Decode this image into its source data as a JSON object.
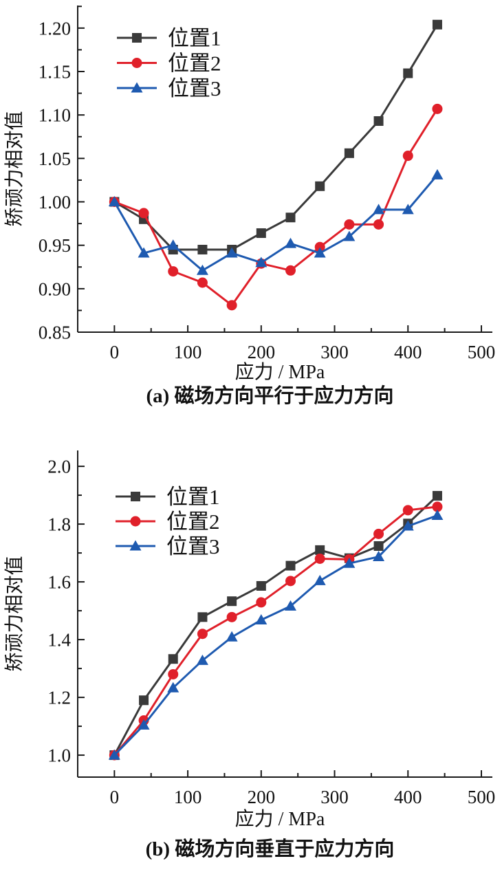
{
  "chart_data": [
    {
      "id": "a",
      "type": "line",
      "caption": "(a) 磁场方向平行于应力方向",
      "xlabel": "应力 / MPa",
      "ylabel": "矫顽力相对值",
      "x": [
        0,
        40,
        80,
        120,
        160,
        200,
        240,
        280,
        320,
        360,
        400,
        440
      ],
      "series": [
        {
          "name": "位置1",
          "marker": "square",
          "color": "#3a3a3a",
          "values": [
            1.0,
            0.98,
            0.945,
            0.945,
            0.945,
            0.964,
            0.982,
            1.018,
            1.056,
            1.093,
            1.148,
            1.204
          ]
        },
        {
          "name": "位置2",
          "marker": "circle",
          "color": "#e0202a",
          "values": [
            1.0,
            0.987,
            0.92,
            0.907,
            0.881,
            0.929,
            0.921,
            0.948,
            0.974,
            0.974,
            1.053,
            1.107
          ]
        },
        {
          "name": "位置3",
          "marker": "triangle",
          "color": "#1e5ab0",
          "values": [
            1.0,
            0.941,
            0.95,
            0.921,
            0.941,
            0.93,
            0.952,
            0.941,
            0.96,
            0.991,
            0.991,
            1.031
          ]
        }
      ],
      "xlim": [
        -50,
        515
      ],
      "ylim": [
        0.85,
        1.226
      ],
      "xticks": [
        0,
        100,
        200,
        300,
        400,
        500
      ],
      "xtick_labels": [
        "0",
        "100",
        "200",
        "300",
        "400",
        "500"
      ],
      "x_minor": [
        50,
        150,
        250,
        350,
        450
      ],
      "yticks": [
        0.85,
        0.9,
        0.95,
        1.0,
        1.05,
        1.1,
        1.15,
        1.2
      ],
      "ytick_labels": [
        "0.85",
        "0.90",
        "0.95",
        "1.00",
        "1.05",
        "1.10",
        "1.15",
        "1.20"
      ],
      "y_minor": [
        0.875,
        0.925,
        0.975,
        1.025,
        1.075,
        1.125,
        1.175,
        1.225
      ],
      "grid": false,
      "legend_position": "upper-left-inside"
    },
    {
      "id": "b",
      "type": "line",
      "caption": "(b) 磁场方向垂直于应力方向",
      "xlabel": "应力 / MPa",
      "ylabel": "矫顽力相对值",
      "x": [
        0,
        40,
        80,
        120,
        160,
        200,
        240,
        280,
        320,
        360,
        400,
        440
      ],
      "series": [
        {
          "name": "位置1",
          "marker": "square",
          "color": "#3a3a3a",
          "values": [
            1.0,
            1.19,
            1.333,
            1.478,
            1.533,
            1.586,
            1.656,
            1.71,
            1.682,
            1.724,
            1.802,
            1.898
          ]
        },
        {
          "name": "位置2",
          "marker": "circle",
          "color": "#e0202a",
          "values": [
            1.0,
            1.12,
            1.28,
            1.42,
            1.478,
            1.529,
            1.603,
            1.68,
            1.678,
            1.766,
            1.848,
            1.86
          ]
        },
        {
          "name": "位置3",
          "marker": "triangle",
          "color": "#1e5ab0",
          "values": [
            1.0,
            1.104,
            1.233,
            1.328,
            1.409,
            1.468,
            1.516,
            1.604,
            1.664,
            1.687,
            1.793,
            1.83
          ]
        }
      ],
      "xlim": [
        -50,
        515
      ],
      "ylim": [
        0.924,
        2.055
      ],
      "xticks": [
        0,
        100,
        200,
        300,
        400,
        500
      ],
      "xtick_labels": [
        "0",
        "100",
        "200",
        "300",
        "400",
        "500"
      ],
      "x_minor": [
        50,
        150,
        250,
        350,
        450
      ],
      "yticks": [
        1.0,
        1.2,
        1.4,
        1.6,
        1.8,
        2.0
      ],
      "ytick_labels": [
        "1.0",
        "1.2",
        "1.4",
        "1.6",
        "1.8",
        "2.0"
      ],
      "y_minor": [
        1.1,
        1.3,
        1.5,
        1.7,
        1.9
      ],
      "grid": false,
      "legend_position": "upper-left-inside"
    }
  ]
}
